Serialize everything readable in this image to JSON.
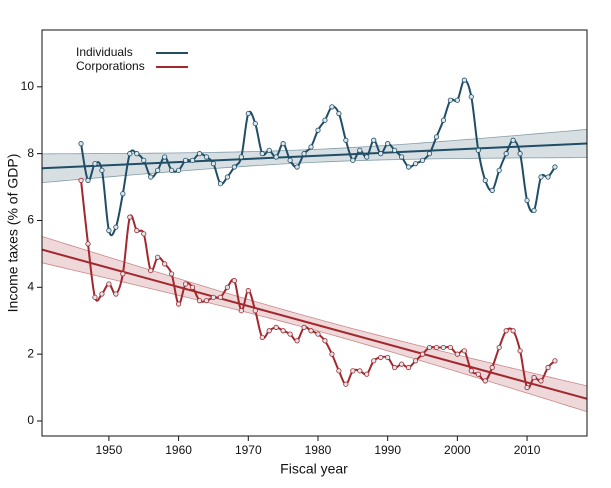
{
  "chart_data": {
    "type": "line",
    "xlabel": "Fiscal year",
    "ylabel": "Income taxes (% of GDP)",
    "x": [
      1946,
      1947,
      1948,
      1949,
      1950,
      1951,
      1952,
      1953,
      1954,
      1955,
      1956,
      1957,
      1958,
      1959,
      1960,
      1961,
      1962,
      1963,
      1964,
      1965,
      1966,
      1967,
      1968,
      1969,
      1970,
      1971,
      1972,
      1973,
      1974,
      1975,
      1976,
      1977,
      1978,
      1979,
      1980,
      1981,
      1982,
      1983,
      1984,
      1985,
      1986,
      1987,
      1988,
      1989,
      1990,
      1991,
      1992,
      1993,
      1994,
      1995,
      1996,
      1997,
      1998,
      1999,
      2000,
      2001,
      2002,
      2003,
      2004,
      2005,
      2006,
      2007,
      2008,
      2009,
      2010,
      2011,
      2012,
      2013,
      2014
    ],
    "series": [
      {
        "name": "Individuals",
        "color": "#1f4e66",
        "values": [
          8.3,
          7.2,
          7.7,
          7.5,
          5.7,
          5.8,
          6.8,
          8.0,
          8.0,
          7.8,
          7.3,
          7.5,
          7.9,
          7.5,
          7.5,
          7.8,
          7.8,
          8.0,
          7.9,
          7.7,
          7.1,
          7.3,
          7.6,
          7.9,
          9.2,
          8.9,
          8.0,
          8.1,
          7.9,
          8.3,
          7.8,
          7.6,
          8.0,
          8.2,
          8.7,
          9.0,
          9.4,
          9.2,
          8.4,
          7.8,
          8.1,
          7.9,
          8.4,
          8.0,
          8.3,
          8.1,
          7.9,
          7.6,
          7.7,
          7.8,
          8.0,
          8.5,
          9.0,
          9.6,
          9.6,
          10.2,
          9.7,
          8.1,
          7.2,
          6.9,
          7.5,
          8.0,
          8.4,
          8.0,
          6.6,
          6.3,
          7.3,
          7.3,
          7.6
        ]
      },
      {
        "name": "Corporations",
        "color": "#a3282e",
        "values": [
          7.2,
          5.3,
          3.7,
          3.8,
          4.1,
          3.8,
          4.4,
          6.1,
          5.7,
          5.6,
          4.5,
          4.9,
          4.7,
          4.4,
          3.5,
          4.1,
          4.0,
          3.6,
          3.6,
          3.7,
          3.7,
          4.0,
          4.2,
          3.3,
          3.9,
          3.3,
          2.5,
          2.7,
          2.8,
          2.7,
          2.6,
          2.4,
          2.8,
          2.7,
          2.6,
          2.4,
          2.0,
          1.5,
          1.1,
          1.5,
          1.5,
          1.4,
          1.8,
          1.9,
          1.9,
          1.6,
          1.7,
          1.6,
          1.8,
          2.0,
          2.2,
          2.2,
          2.2,
          2.2,
          2.0,
          2.1,
          1.5,
          1.4,
          1.2,
          1.6,
          2.2,
          2.7,
          2.7,
          2.1,
          1.0,
          1.3,
          1.2,
          1.6,
          1.8
        ]
      }
    ],
    "xlim": [
      1940.4,
      2018.6
    ],
    "xticks": [
      1950,
      1960,
      1970,
      1980,
      1990,
      2000,
      2010
    ],
    "ylim": [
      -0.45,
      11.7
    ],
    "yticks": [
      0,
      2,
      4,
      6,
      8,
      10
    ],
    "trend": "linear",
    "legend": "top-left"
  }
}
